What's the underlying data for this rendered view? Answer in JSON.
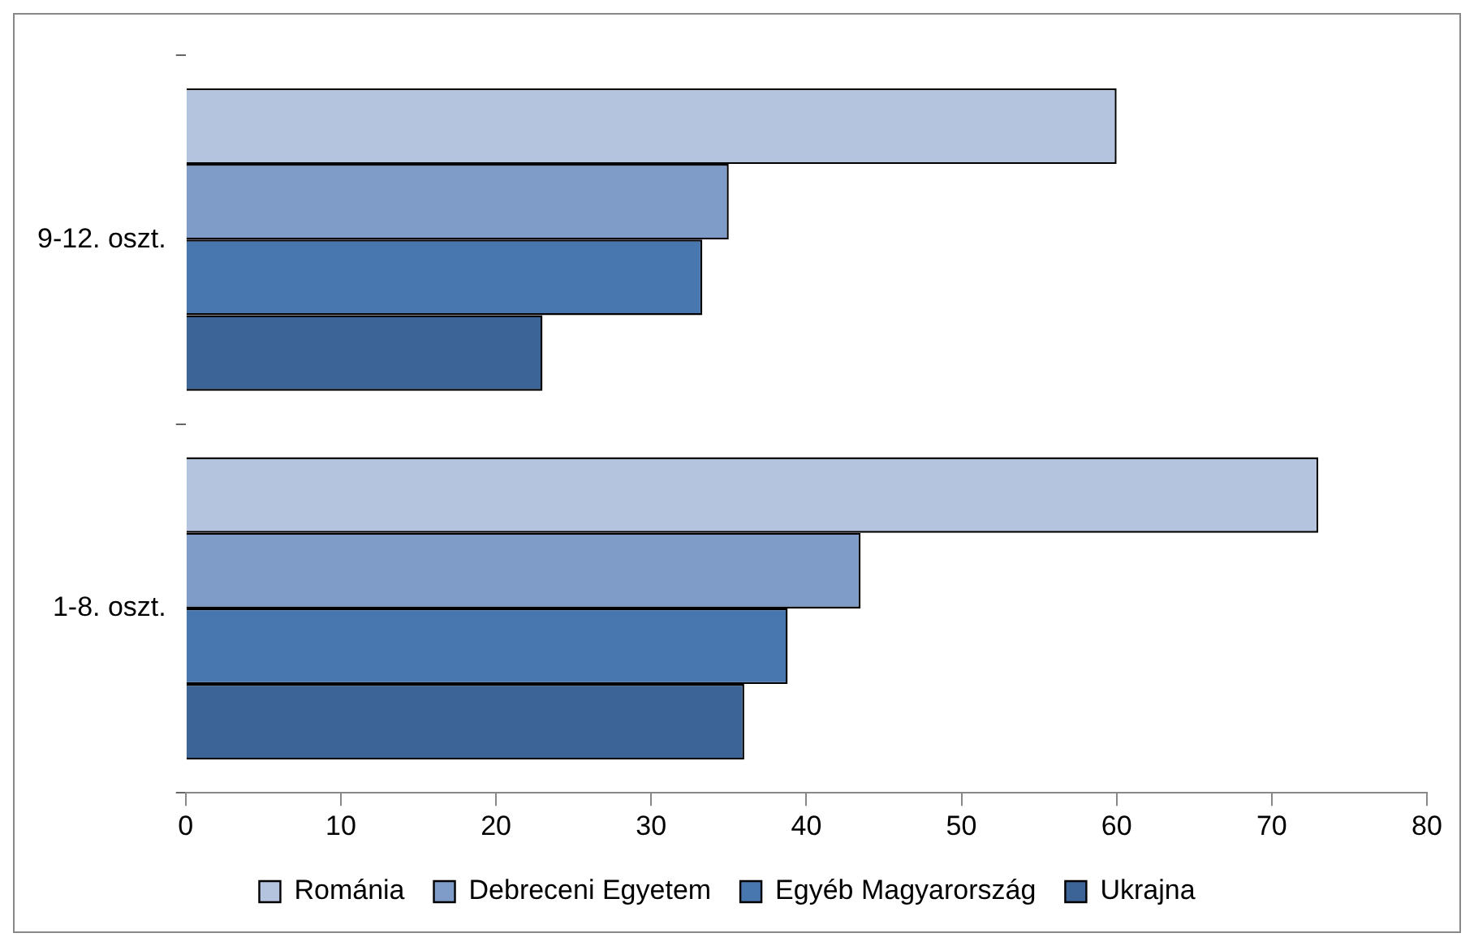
{
  "chart_data": {
    "type": "bar",
    "orientation": "horizontal",
    "categories": [
      "9-12. oszt.",
      "1-8. oszt."
    ],
    "series": [
      {
        "name": "Románia",
        "color": "#b4c3de",
        "values": [
          60,
          73
        ]
      },
      {
        "name": "Debreceni Egyetem",
        "color": "#7f9cc8",
        "values": [
          35,
          43.5
        ]
      },
      {
        "name": "Egyéb Magyarország",
        "color": "#4876af",
        "values": [
          33.3,
          38.8
        ]
      },
      {
        "name": "Ukrajna",
        "color": "#3c6496",
        "values": [
          23,
          36
        ]
      }
    ],
    "xlim": [
      0,
      80
    ],
    "xticks": [
      0,
      10,
      20,
      30,
      40,
      50,
      60,
      70,
      80
    ],
    "grid": false,
    "legend": "bottom"
  }
}
